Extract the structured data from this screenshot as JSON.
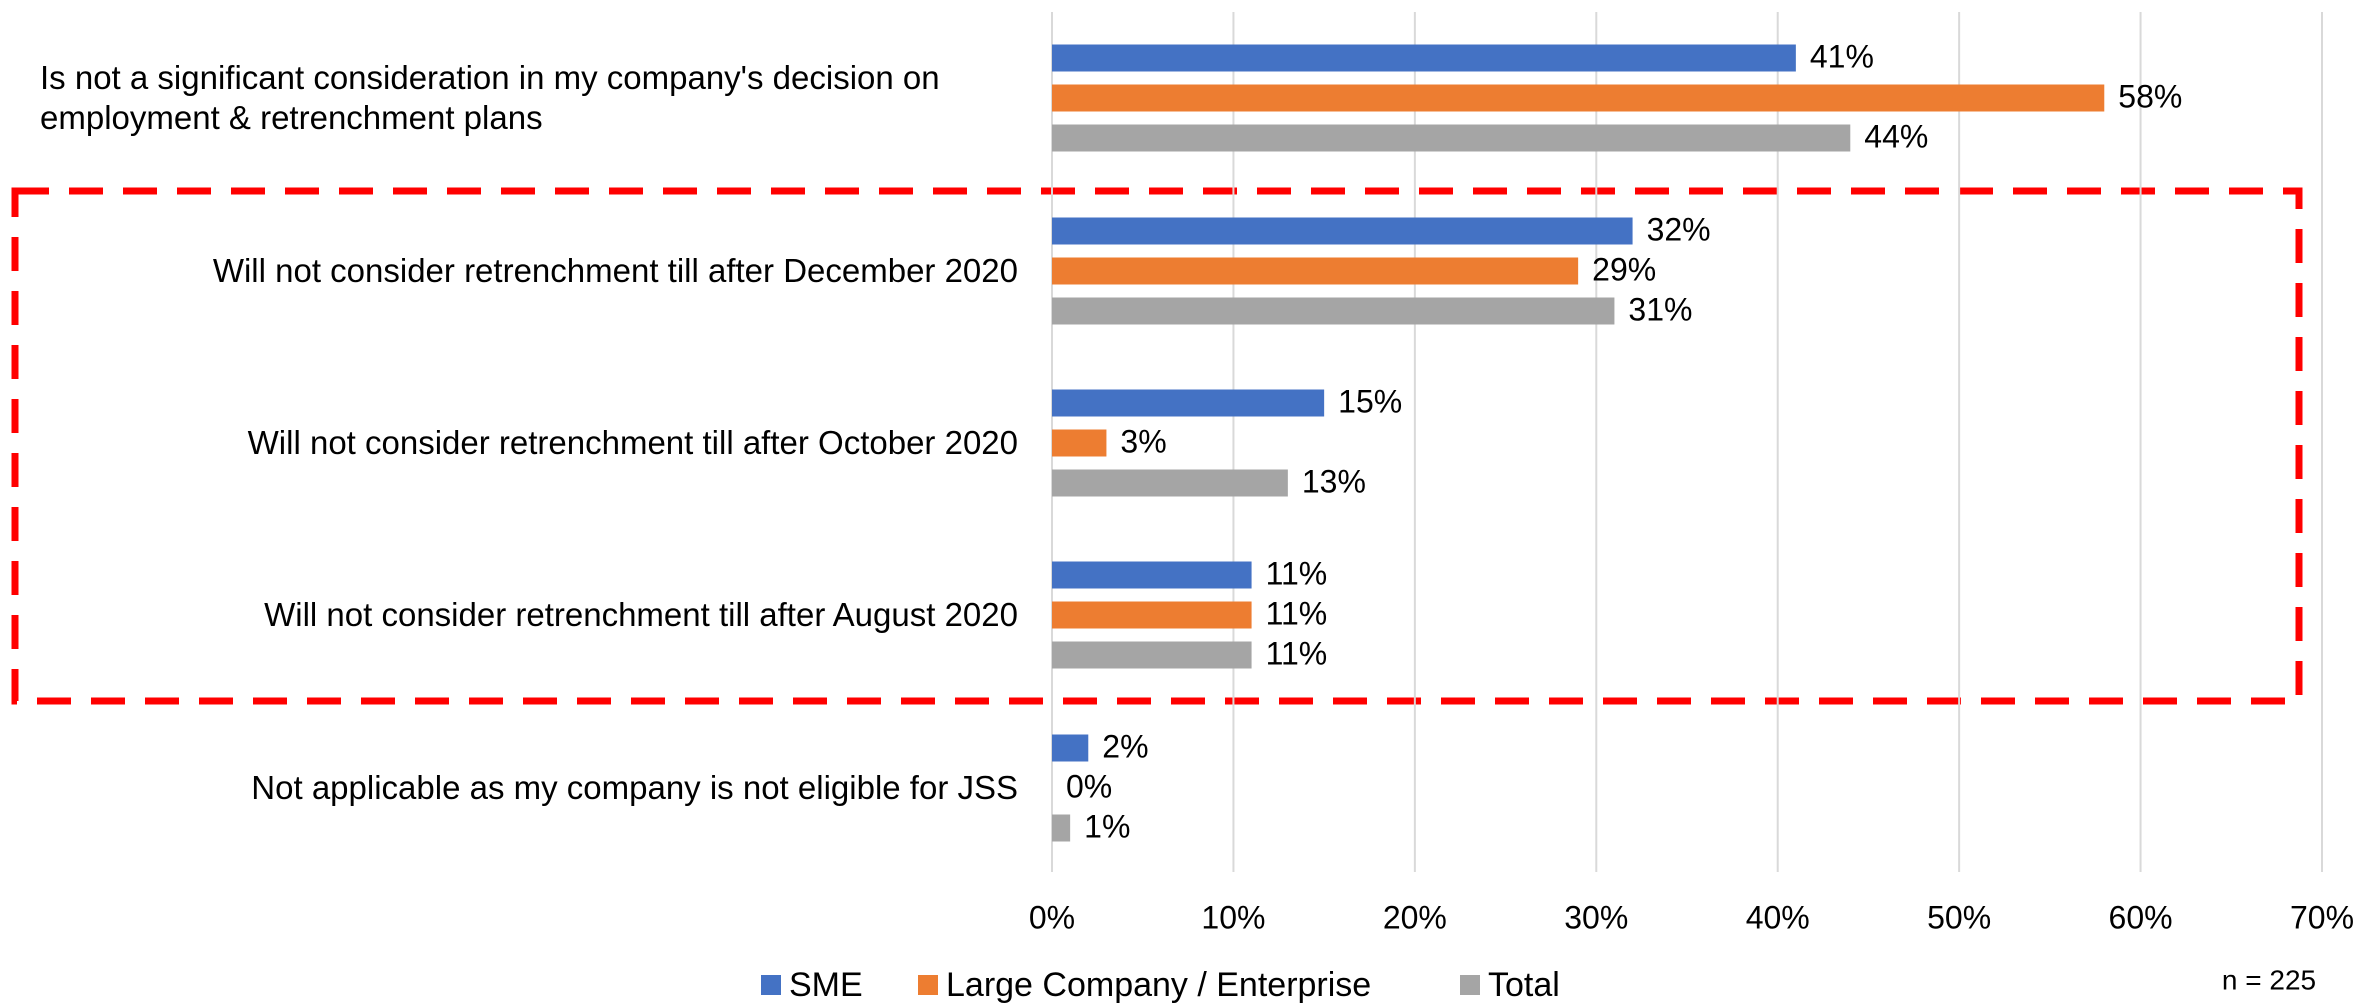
{
  "chart_data": {
    "type": "bar",
    "orientation": "horizontal",
    "categories": [
      "Is not a significant consideration in my company's decision on employment & retrenchment plans",
      "Will not consider retrenchment till after December 2020",
      "Will not consider retrenchment till after October 2020",
      "Will not consider retrenchment till after August 2020",
      "Not applicable as my company is not eligible for JSS"
    ],
    "series": [
      {
        "name": "SME",
        "color": "#4472c4",
        "values": [
          41,
          32,
          15,
          11,
          2
        ],
        "value_labels": [
          "41%",
          "32%",
          "15%",
          "11%",
          "2%"
        ]
      },
      {
        "name": "Large Company / Enterprise",
        "color": "#ed7d31",
        "values": [
          58,
          29,
          3,
          11,
          0
        ],
        "value_labels": [
          "58%",
          "29%",
          "3%",
          "11%",
          "0%"
        ]
      },
      {
        "name": "Total",
        "color": "#a5a5a5",
        "values": [
          44,
          31,
          13,
          11,
          1
        ],
        "value_labels": [
          "44%",
          "31%",
          "13%",
          "11%",
          "1%"
        ]
      }
    ],
    "xlim": [
      0,
      70
    ],
    "xticks": [
      {
        "value": 0,
        "label": "0%"
      },
      {
        "value": 10,
        "label": "10%"
      },
      {
        "value": 20,
        "label": "20%"
      },
      {
        "value": 30,
        "label": "30%"
      },
      {
        "value": 40,
        "label": "40%"
      },
      {
        "value": 50,
        "label": "50%"
      },
      {
        "value": 60,
        "label": "60%"
      },
      {
        "value": 70,
        "label": "70%"
      }
    ],
    "grid": true,
    "legend": "bottom",
    "annotation": "n = 225"
  }
}
